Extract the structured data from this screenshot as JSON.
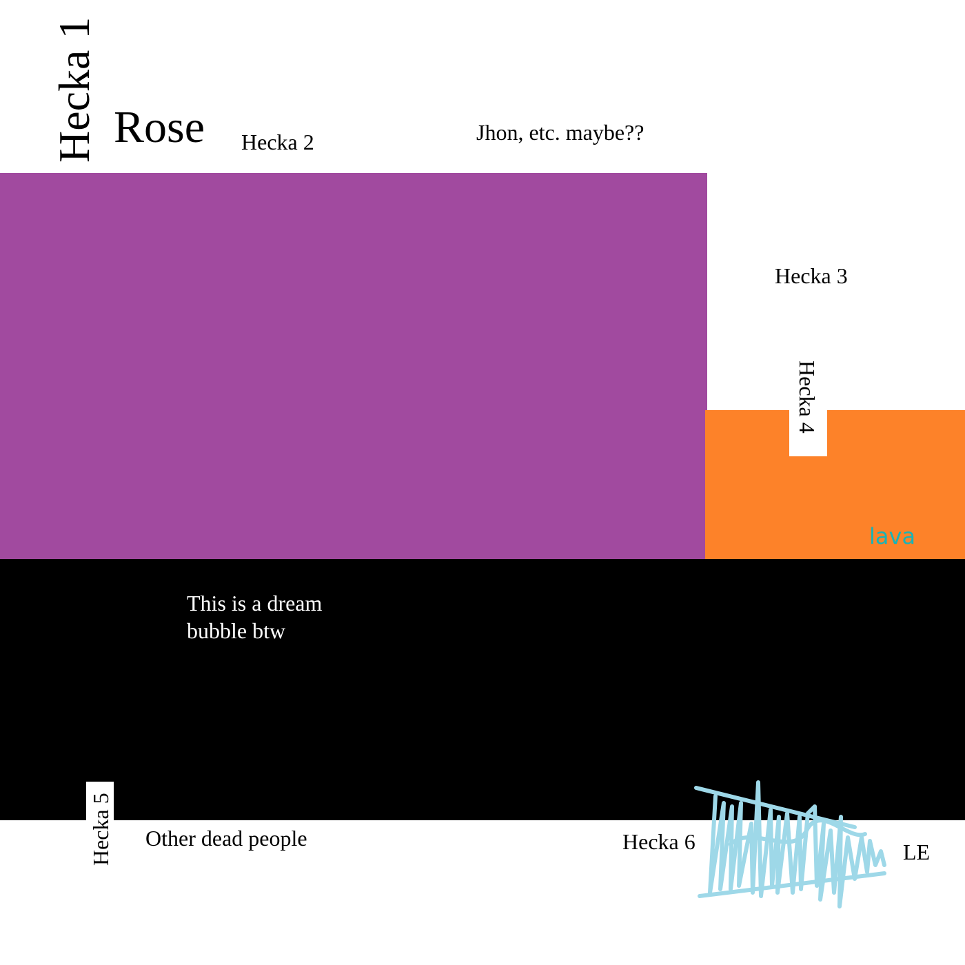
{
  "colors": {
    "background": "#ffffff",
    "purple_block": "#a14a9f",
    "orange_block": "#fd8229",
    "black_block": "#000000",
    "lava_text": "#1ab3b6",
    "dream_text": "#ffffff",
    "scribble_stroke": "#9ed8e8"
  },
  "labels": {
    "hecka1": "Hecka 1",
    "rose": "Rose",
    "hecka2": "Hecka 2",
    "jhon": "Jhon, etc. maybe??",
    "hecka3": "Hecka 3",
    "hecka4": "Hecka 4",
    "lava": "lava",
    "dream": "This is a dream bubble btw",
    "hecka5": "Hecka 5",
    "other_dead": "Other dead people",
    "hecka6": "Hecka 6",
    "le": "LE"
  },
  "drawing": {
    "scribble_icon": "signature-scribble"
  }
}
